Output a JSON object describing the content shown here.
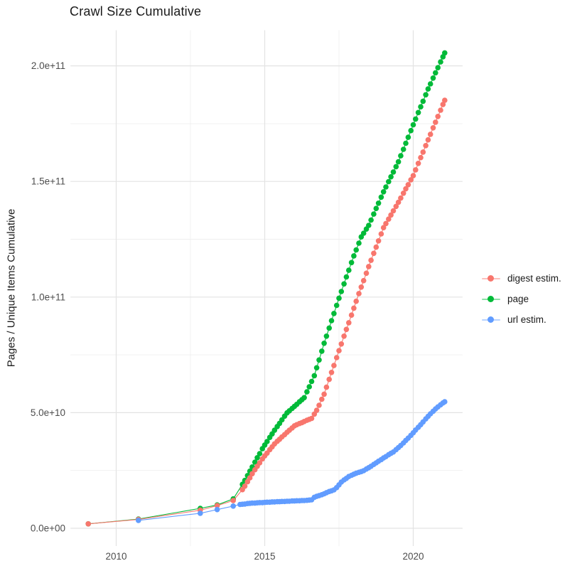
{
  "title": "Crawl Size Cumulative",
  "y_axis": {
    "title": "Pages / Unique Items Cumulative",
    "tick_labels": [
      "0.0e+00",
      "5.0e+10",
      "1.0e+11",
      "1.5e+11",
      "2.0e+11"
    ],
    "tick_values_billions": [
      0,
      50,
      100,
      150,
      200
    ],
    "minor_tick_values_billions": [
      25,
      75,
      125,
      175
    ]
  },
  "x_axis": {
    "tick_labels": [
      "2010",
      "2015",
      "2020"
    ],
    "tick_values": [
      2010,
      2015,
      2020
    ],
    "minor_tick_values": [
      2012.5,
      2017.5
    ]
  },
  "legend": {
    "items": [
      {
        "label": "digest estim.",
        "color": "#F8766D"
      },
      {
        "label": "page",
        "color": "#00BA38"
      },
      {
        "label": "url estim.",
        "color": "#619CFF"
      }
    ]
  },
  "chart_data": {
    "type": "scatter",
    "title": "Crawl Size Cumulative",
    "xlabel": "",
    "ylabel": "Pages / Unique Items Cumulative",
    "legend_position": "right",
    "grid": "on",
    "xlim": [
      2008.5,
      2021.65
    ],
    "ylim": [
      -9000000000.0,
      215000000000.0
    ],
    "y_values_unit": "billions (value x 1e9 pages / unique items)",
    "x_values_unit": "decimal year",
    "series": [
      {
        "name": "digest estim.",
        "color": "#F8766D",
        "points": [
          [
            2009.06,
            1.9
          ],
          [
            2010.75,
            3.8
          ],
          [
            2012.83,
            7.8
          ],
          [
            2013.4,
            9.8
          ],
          [
            2013.94,
            12.0
          ],
          [
            2014.25,
            16.7
          ],
          [
            2014.33,
            18.2
          ],
          [
            2014.42,
            20.1
          ],
          [
            2014.5,
            21.8
          ],
          [
            2014.58,
            23.6
          ],
          [
            2014.67,
            25.3
          ],
          [
            2014.75,
            26.8
          ],
          [
            2014.83,
            28.3
          ],
          [
            2014.92,
            30.0
          ],
          [
            2015.0,
            31.3
          ],
          [
            2015.08,
            32.5
          ],
          [
            2015.17,
            34.0
          ],
          [
            2015.25,
            35.2
          ],
          [
            2015.33,
            36.5
          ],
          [
            2015.42,
            37.6
          ],
          [
            2015.5,
            38.5
          ],
          [
            2015.58,
            39.5
          ],
          [
            2015.67,
            40.5
          ],
          [
            2015.75,
            41.5
          ],
          [
            2015.83,
            42.4
          ],
          [
            2015.92,
            43.4
          ],
          [
            2016.0,
            44.3
          ],
          [
            2016.08,
            44.8
          ],
          [
            2016.17,
            45.3
          ],
          [
            2016.25,
            45.7
          ],
          [
            2016.33,
            46.2
          ],
          [
            2016.42,
            46.7
          ],
          [
            2016.5,
            47.1
          ],
          [
            2016.58,
            47.5
          ],
          [
            2016.67,
            49.4
          ],
          [
            2016.75,
            51.0
          ],
          [
            2016.83,
            53.2
          ],
          [
            2016.92,
            55.8
          ],
          [
            2017.0,
            58.0
          ],
          [
            2017.08,
            61.0
          ],
          [
            2017.17,
            64.4
          ],
          [
            2017.25,
            67.4
          ],
          [
            2017.33,
            70.4
          ],
          [
            2017.42,
            73.8
          ],
          [
            2017.5,
            76.8
          ],
          [
            2017.58,
            79.7
          ],
          [
            2017.67,
            83.1
          ],
          [
            2017.75,
            86.0
          ],
          [
            2017.83,
            88.9
          ],
          [
            2017.92,
            92.2
          ],
          [
            2018.0,
            95.2
          ],
          [
            2018.08,
            98.2
          ],
          [
            2018.17,
            101.5
          ],
          [
            2018.25,
            104.3
          ],
          [
            2018.33,
            107.1
          ],
          [
            2018.42,
            110.3
          ],
          [
            2018.5,
            113.2
          ],
          [
            2018.58,
            115.9
          ],
          [
            2018.67,
            118.9
          ],
          [
            2018.75,
            121.6
          ],
          [
            2018.83,
            124.3
          ],
          [
            2018.92,
            127.3
          ],
          [
            2019.0,
            130.0
          ],
          [
            2019.08,
            131.8
          ],
          [
            2019.17,
            133.7
          ],
          [
            2019.25,
            135.5
          ],
          [
            2019.33,
            137.3
          ],
          [
            2019.42,
            139.2
          ],
          [
            2019.5,
            141.0
          ],
          [
            2019.58,
            142.8
          ],
          [
            2019.67,
            144.9
          ],
          [
            2019.75,
            146.8
          ],
          [
            2019.83,
            148.6
          ],
          [
            2019.92,
            150.7
          ],
          [
            2020.0,
            152.5
          ],
          [
            2020.08,
            155.0
          ],
          [
            2020.17,
            157.8
          ],
          [
            2020.25,
            160.3
          ],
          [
            2020.33,
            162.7
          ],
          [
            2020.42,
            165.5
          ],
          [
            2020.5,
            168.0
          ],
          [
            2020.58,
            170.4
          ],
          [
            2020.67,
            173.2
          ],
          [
            2020.75,
            175.6
          ],
          [
            2020.83,
            178.1
          ],
          [
            2020.92,
            180.8
          ],
          [
            2021.0,
            183.3
          ],
          [
            2021.06,
            185.1
          ]
        ]
      },
      {
        "name": "page",
        "color": "#00BA38",
        "points": [
          [
            2009.06,
            1.9
          ],
          [
            2010.75,
            4.0
          ],
          [
            2012.83,
            8.6
          ],
          [
            2013.4,
            10.1
          ],
          [
            2013.94,
            12.7
          ],
          [
            2014.25,
            19.0
          ],
          [
            2014.33,
            20.7
          ],
          [
            2014.42,
            22.8
          ],
          [
            2014.5,
            24.7
          ],
          [
            2014.58,
            26.5
          ],
          [
            2014.67,
            28.6
          ],
          [
            2014.75,
            30.5
          ],
          [
            2014.83,
            32.3
          ],
          [
            2014.92,
            34.4
          ],
          [
            2015.0,
            36.0
          ],
          [
            2015.08,
            37.5
          ],
          [
            2015.17,
            39.3
          ],
          [
            2015.25,
            40.8
          ],
          [
            2015.33,
            42.4
          ],
          [
            2015.42,
            44.0
          ],
          [
            2015.5,
            45.4
          ],
          [
            2015.58,
            46.9
          ],
          [
            2015.67,
            48.5
          ],
          [
            2015.75,
            49.9
          ],
          [
            2015.83,
            50.8
          ],
          [
            2015.92,
            51.8
          ],
          [
            2016.0,
            52.7
          ],
          [
            2016.08,
            53.6
          ],
          [
            2016.17,
            54.7
          ],
          [
            2016.25,
            55.6
          ],
          [
            2016.33,
            56.5
          ],
          [
            2016.42,
            59.0
          ],
          [
            2016.5,
            61.2
          ],
          [
            2016.58,
            63.5
          ],
          [
            2016.67,
            66.0
          ],
          [
            2016.75,
            69.4
          ],
          [
            2016.83,
            72.8
          ],
          [
            2016.92,
            76.6
          ],
          [
            2017.0,
            80.0
          ],
          [
            2017.08,
            83.1
          ],
          [
            2017.17,
            86.6
          ],
          [
            2017.25,
            89.8
          ],
          [
            2017.33,
            92.9
          ],
          [
            2017.42,
            96.4
          ],
          [
            2017.5,
            99.5
          ],
          [
            2017.58,
            102.4
          ],
          [
            2017.67,
            105.7
          ],
          [
            2017.75,
            108.7
          ],
          [
            2017.83,
            111.6
          ],
          [
            2017.92,
            114.9
          ],
          [
            2018.0,
            117.8
          ],
          [
            2018.08,
            120.4
          ],
          [
            2018.17,
            123.3
          ],
          [
            2018.25,
            126.0
          ],
          [
            2018.33,
            127.6
          ],
          [
            2018.42,
            129.4
          ],
          [
            2018.5,
            131.0
          ],
          [
            2018.58,
            133.3
          ],
          [
            2018.67,
            135.9
          ],
          [
            2018.75,
            138.3
          ],
          [
            2018.83,
            140.6
          ],
          [
            2018.92,
            143.2
          ],
          [
            2019.0,
            145.5
          ],
          [
            2019.08,
            147.6
          ],
          [
            2019.17,
            149.9
          ],
          [
            2019.25,
            152.0
          ],
          [
            2019.33,
            154.1
          ],
          [
            2019.42,
            156.4
          ],
          [
            2019.5,
            158.5
          ],
          [
            2019.58,
            161.1
          ],
          [
            2019.67,
            163.9
          ],
          [
            2019.75,
            166.5
          ],
          [
            2019.83,
            169.1
          ],
          [
            2019.92,
            172.0
          ],
          [
            2020.0,
            174.5
          ],
          [
            2020.08,
            177.0
          ],
          [
            2020.17,
            179.8
          ],
          [
            2020.25,
            182.3
          ],
          [
            2020.33,
            184.7
          ],
          [
            2020.42,
            187.5
          ],
          [
            2020.5,
            190.0
          ],
          [
            2020.58,
            192.2
          ],
          [
            2020.67,
            194.7
          ],
          [
            2020.75,
            197.0
          ],
          [
            2020.83,
            199.2
          ],
          [
            2020.92,
            201.7
          ],
          [
            2021.0,
            203.9
          ],
          [
            2021.06,
            205.6
          ]
        ]
      },
      {
        "name": "url estim.",
        "color": "#619CFF",
        "points": [
          [
            2010.75,
            3.4
          ],
          [
            2012.83,
            6.5
          ],
          [
            2013.4,
            8.1
          ],
          [
            2013.94,
            9.6
          ],
          [
            2014.17,
            10.3
          ],
          [
            2014.25,
            10.4
          ],
          [
            2014.33,
            10.5
          ],
          [
            2014.42,
            10.7
          ],
          [
            2014.5,
            10.8
          ],
          [
            2014.58,
            10.9
          ],
          [
            2014.67,
            10.9
          ],
          [
            2014.75,
            11.0
          ],
          [
            2014.83,
            11.1
          ],
          [
            2014.92,
            11.1
          ],
          [
            2015.0,
            11.2
          ],
          [
            2015.08,
            11.3
          ],
          [
            2015.17,
            11.3
          ],
          [
            2015.25,
            11.4
          ],
          [
            2015.33,
            11.4
          ],
          [
            2015.42,
            11.5
          ],
          [
            2015.5,
            11.5
          ],
          [
            2015.58,
            11.6
          ],
          [
            2015.67,
            11.6
          ],
          [
            2015.75,
            11.7
          ],
          [
            2015.83,
            11.7
          ],
          [
            2015.92,
            11.8
          ],
          [
            2016.0,
            11.8
          ],
          [
            2016.08,
            11.9
          ],
          [
            2016.17,
            11.9
          ],
          [
            2016.25,
            12.0
          ],
          [
            2016.33,
            12.0
          ],
          [
            2016.42,
            12.1
          ],
          [
            2016.5,
            12.2
          ],
          [
            2016.58,
            12.3
          ],
          [
            2016.67,
            13.4
          ],
          [
            2016.75,
            13.8
          ],
          [
            2016.83,
            14.1
          ],
          [
            2016.92,
            14.5
          ],
          [
            2017.0,
            14.9
          ],
          [
            2017.08,
            15.4
          ],
          [
            2017.17,
            15.9
          ],
          [
            2017.25,
            16.2
          ],
          [
            2017.33,
            16.6
          ],
          [
            2017.42,
            17.6
          ],
          [
            2017.5,
            18.8
          ],
          [
            2017.58,
            20.0
          ],
          [
            2017.67,
            20.9
          ],
          [
            2017.75,
            21.6
          ],
          [
            2017.83,
            22.4
          ],
          [
            2017.92,
            22.9
          ],
          [
            2018.0,
            23.4
          ],
          [
            2018.08,
            23.8
          ],
          [
            2018.17,
            24.2
          ],
          [
            2018.25,
            24.5
          ],
          [
            2018.33,
            24.9
          ],
          [
            2018.42,
            25.6
          ],
          [
            2018.5,
            26.2
          ],
          [
            2018.58,
            26.8
          ],
          [
            2018.67,
            27.6
          ],
          [
            2018.75,
            28.3
          ],
          [
            2018.83,
            29.0
          ],
          [
            2018.92,
            29.7
          ],
          [
            2019.0,
            30.4
          ],
          [
            2019.08,
            31.0
          ],
          [
            2019.17,
            31.8
          ],
          [
            2019.25,
            32.4
          ],
          [
            2019.33,
            33.0
          ],
          [
            2019.42,
            34.0
          ],
          [
            2019.5,
            34.9
          ],
          [
            2019.58,
            35.8
          ],
          [
            2019.67,
            36.9
          ],
          [
            2019.75,
            38.0
          ],
          [
            2019.83,
            39.0
          ],
          [
            2019.92,
            40.2
          ],
          [
            2020.0,
            41.3
          ],
          [
            2020.08,
            42.5
          ],
          [
            2020.17,
            43.7
          ],
          [
            2020.25,
            44.8
          ],
          [
            2020.33,
            46.0
          ],
          [
            2020.42,
            47.3
          ],
          [
            2020.5,
            48.4
          ],
          [
            2020.58,
            49.5
          ],
          [
            2020.67,
            50.6
          ],
          [
            2020.75,
            51.6
          ],
          [
            2020.83,
            52.5
          ],
          [
            2020.92,
            53.4
          ],
          [
            2021.0,
            54.2
          ],
          [
            2021.06,
            54.7
          ]
        ]
      }
    ]
  }
}
